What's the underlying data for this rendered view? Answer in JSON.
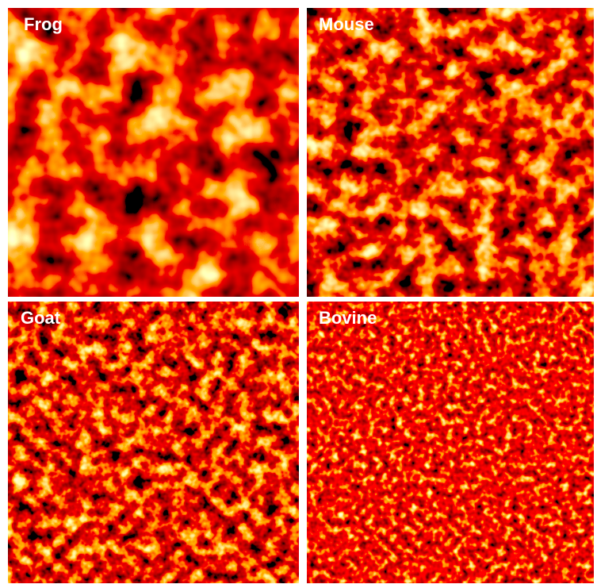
{
  "panels": [
    {
      "label": "Frog"
    },
    {
      "label": "Mouse"
    },
    {
      "label": "Goat"
    },
    {
      "label": "Bovine"
    }
  ]
}
